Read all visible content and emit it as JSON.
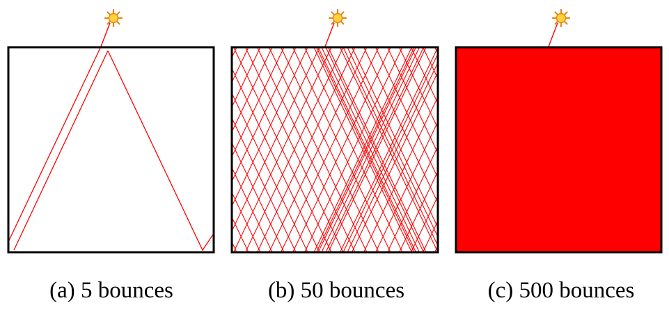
{
  "panels": [
    {
      "caption": "(a) 5 bounces",
      "bounces": 5
    },
    {
      "caption": "(b) 50 bounces",
      "bounces": 50
    },
    {
      "caption": "(c) 500 bounces",
      "bounces": 500
    }
  ],
  "colors": {
    "ray": "#ff0000",
    "frame": "#000000",
    "sun_core": "#ffd23a",
    "sun_rays": "#e8871a",
    "sun_ray_line": "#ff0000"
  },
  "icons": {
    "light_source": "sun-icon"
  }
}
